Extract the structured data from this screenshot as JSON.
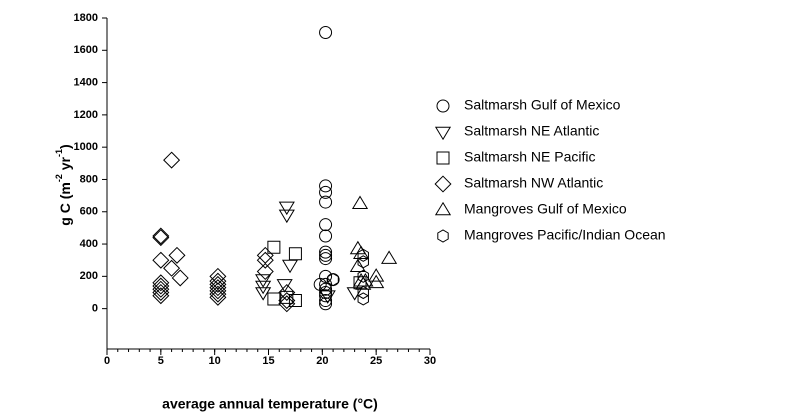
{
  "chart_data": {
    "type": "scatter",
    "xlabel": "average annual temperature (°C)",
    "ylabel_parts": [
      "g C (m",
      "-2",
      " yr",
      "-1",
      ")"
    ],
    "xlim": [
      0,
      30
    ],
    "xticks": [
      0,
      5,
      10,
      15,
      20,
      25,
      30
    ],
    "xminor_step": 1,
    "ylim": [
      -250,
      1800
    ],
    "yticks": [
      0,
      200,
      400,
      600,
      800,
      1000,
      1200,
      1400,
      1600,
      1800
    ],
    "grid": false,
    "legend": "right",
    "series": [
      {
        "name": "Saltmarsh Gulf of Mexico",
        "marker": "circle",
        "color": "#000000",
        "x": [
          20.3,
          20.3,
          20.3,
          20.3,
          20.3,
          20.3,
          20.3,
          20.3,
          20.3,
          20.3,
          20.3,
          20.3,
          20.3,
          20.3,
          20.3,
          20.3,
          21,
          19.8
        ],
        "values": [
          1710,
          760,
          720,
          660,
          520,
          450,
          350,
          330,
          310,
          200,
          150,
          120,
          100,
          80,
          50,
          30,
          180,
          150
        ]
      },
      {
        "name": "Saltmarsh NE Atlantic",
        "marker": "triangle-down",
        "color": "#000000",
        "x": [
          16.7,
          16.7,
          17,
          14.5,
          14.5,
          14.5,
          16.5,
          20.5,
          23
        ],
        "values": [
          630,
          580,
          270,
          180,
          140,
          100,
          150,
          80,
          100
        ]
      },
      {
        "name": "Saltmarsh NE Pacific",
        "marker": "square",
        "color": "#000000",
        "x": [
          15.5,
          15.5,
          17.5,
          17.5,
          16.7,
          23.5
        ],
        "values": [
          380,
          60,
          340,
          50,
          70,
          160
        ]
      },
      {
        "name": "Saltmarsh NW Atlantic",
        "marker": "diamond",
        "color": "#000000",
        "x": [
          6,
          5,
          5,
          5,
          5,
          5,
          5,
          5,
          5,
          6,
          6.5,
          6.8,
          10.3,
          10.3,
          10.3,
          10.3,
          10.3,
          10.3,
          10.3,
          14.7,
          14.7,
          14.7,
          16.7,
          16.7,
          16.7
        ],
        "values": [
          920,
          450,
          440,
          300,
          160,
          140,
          120,
          100,
          80,
          250,
          330,
          190,
          200,
          170,
          150,
          130,
          110,
          90,
          70,
          330,
          300,
          230,
          100,
          50,
          30
        ]
      },
      {
        "name": "Mangroves Gulf of Mexico",
        "marker": "triangle-up",
        "color": "#000000",
        "x": [
          23.5,
          23.3,
          23.6,
          23.3,
          23.6,
          23.8,
          24,
          25,
          25,
          26.2
        ],
        "values": [
          650,
          370,
          340,
          260,
          170,
          150,
          170,
          200,
          160,
          310
        ]
      },
      {
        "name": "Mangroves Pacific/Indian Ocean",
        "marker": "hexagon",
        "color": "#000000",
        "x": [
          23.8,
          23.8,
          23.8,
          23.8,
          23.8,
          21
        ],
        "values": [
          330,
          290,
          200,
          100,
          60,
          180
        ]
      }
    ]
  }
}
